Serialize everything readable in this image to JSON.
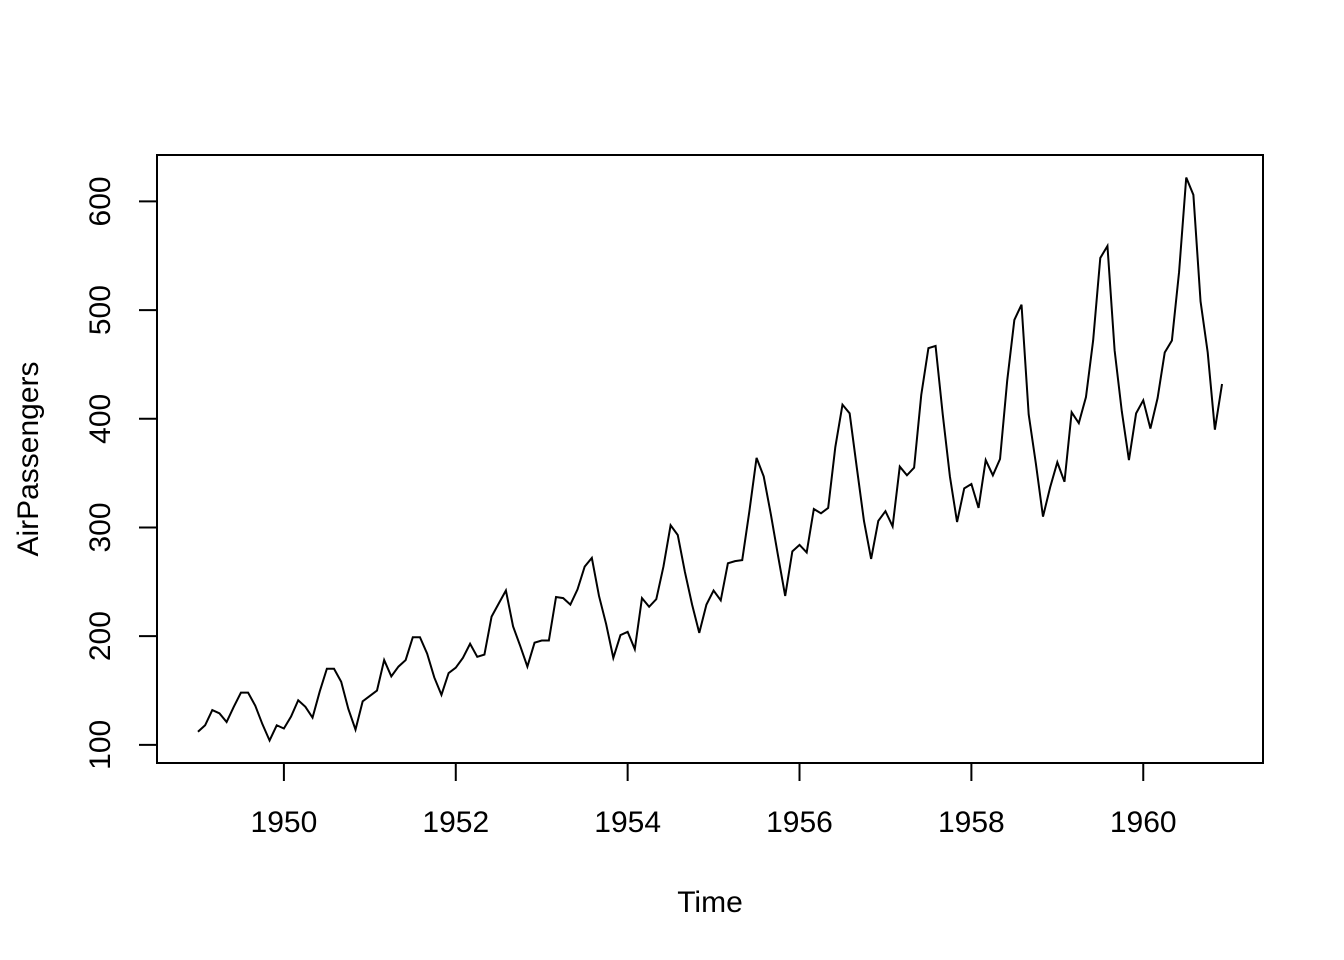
{
  "figure": {
    "background_color": "#ffffff"
  },
  "chart_data": {
    "type": "line",
    "title": "",
    "xlabel": "Time",
    "ylabel": "AirPassengers",
    "series": [
      {
        "name": "AirPassengers",
        "start_year": 1949,
        "points_per_year": 12,
        "values": [
          112,
          118,
          132,
          129,
          121,
          135,
          148,
          148,
          136,
          119,
          104,
          118,
          115,
          126,
          141,
          135,
          125,
          149,
          170,
          170,
          158,
          133,
          114,
          140,
          145,
          150,
          178,
          163,
          172,
          178,
          199,
          199,
          184,
          162,
          146,
          166,
          171,
          180,
          193,
          181,
          183,
          218,
          230,
          242,
          209,
          191,
          172,
          194,
          196,
          196,
          236,
          235,
          229,
          243,
          264,
          272,
          237,
          211,
          180,
          201,
          204,
          188,
          235,
          227,
          234,
          264,
          302,
          293,
          259,
          229,
          203,
          229,
          242,
          233,
          267,
          269,
          270,
          315,
          364,
          347,
          312,
          274,
          237,
          278,
          284,
          277,
          317,
          313,
          318,
          374,
          413,
          405,
          355,
          306,
          271,
          306,
          315,
          301,
          356,
          348,
          355,
          422,
          465,
          467,
          404,
          347,
          305,
          336,
          340,
          318,
          362,
          348,
          363,
          435,
          491,
          505,
          404,
          359,
          310,
          337,
          360,
          342,
          406,
          396,
          420,
          472,
          548,
          559,
          463,
          407,
          362,
          405,
          417,
          391,
          419,
          461,
          472,
          535,
          622,
          606,
          508,
          461,
          390,
          432
        ]
      }
    ],
    "x_ticks": [
      1950,
      1952,
      1954,
      1956,
      1958,
      1960
    ],
    "y_ticks": [
      100,
      200,
      300,
      400,
      500,
      600
    ],
    "x_range": [
      1949.0,
      1960.9167
    ],
    "y_range": [
      104,
      622
    ],
    "axis_padding_fraction": 0.04,
    "grid": false,
    "legend": "none",
    "line_color": "#000000",
    "axis_color": "#000000",
    "text_color": "#000000"
  }
}
